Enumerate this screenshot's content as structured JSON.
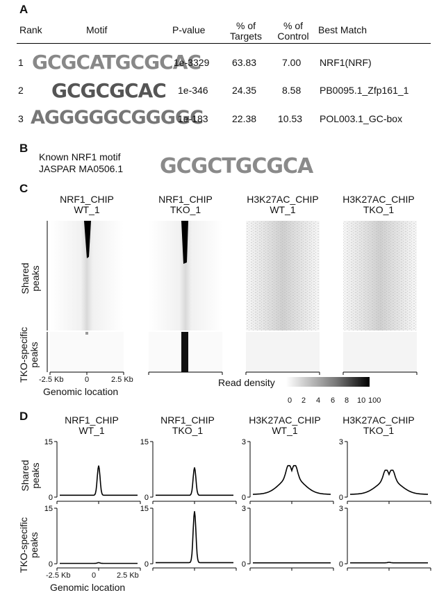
{
  "panel_a": {
    "letter": "A",
    "headers": {
      "rank": "Rank",
      "motif": "Motif",
      "pvalue": "P-value",
      "targets": [
        "% of",
        "Targets"
      ],
      "control": [
        "% of",
        "Control"
      ],
      "best": "Best Match"
    },
    "rows": [
      {
        "rank": "1",
        "motif": "GCGCATGCGCAC",
        "pvalue": "1e-3329",
        "targets": "63.83",
        "control": "7.00",
        "best": "NRF1(NRF)"
      },
      {
        "rank": "2",
        "motif": "GCGCGCAC",
        "pvalue": "1e-346",
        "targets": "24.35",
        "control": "8.58",
        "best": "PB0095.1_Zfp161_1"
      },
      {
        "rank": "3",
        "motif": "AGGGGGCGGGGC",
        "pvalue": "1e-183",
        "targets": "22.38",
        "control": "10.53",
        "best": "POL003.1_GC-box"
      }
    ]
  },
  "panel_b": {
    "letter": "B",
    "line1": "Known NRF1 motif",
    "line2": "JASPAR MA0506.1",
    "motif": "GCGCTGCGCA"
  },
  "panel_c": {
    "letter": "C",
    "columns": [
      {
        "line1": "NRF1_CHIP",
        "line2": "WT_1"
      },
      {
        "line1": "NRF1_CHIP",
        "line2": "TKO_1"
      },
      {
        "line1": "H3K27AC_CHIP",
        "line2": "WT_1"
      },
      {
        "line1": "H3K27AC_CHIP",
        "line2": "TKO_1"
      }
    ],
    "row_labels": {
      "shared": [
        "Shared",
        "peaks"
      ],
      "tko": [
        "TKO-specific",
        "peaks"
      ]
    },
    "x_ticks": [
      "-2.5 Kb",
      "0",
      "2.5 Kb"
    ],
    "x_label": "Genomic location",
    "legend_label": "Read density",
    "legend_ticks": [
      "0",
      "2",
      "4",
      "6",
      "8",
      "10",
      "100"
    ]
  },
  "panel_d": {
    "letter": "D",
    "columns": [
      {
        "line1": "NRF1_CHIP",
        "line2": "WT_1"
      },
      {
        "line1": "NRF1_CHIP",
        "line2": "TKO_1"
      },
      {
        "line1": "H3K27AC_CHIP",
        "line2": "WT_1"
      },
      {
        "line1": "H3K27AC_CHIP",
        "line2": "TKO_1"
      }
    ],
    "row_labels": {
      "shared": [
        "Shared",
        "peaks"
      ],
      "tko": [
        "TKO-specific",
        "peaks"
      ]
    },
    "x_ticks": [
      "-2.5 Kb",
      "0",
      "2.5 Kb"
    ],
    "x_label": "Genomic location"
  },
  "chart_data": [
    {
      "type": "line",
      "panel": "D",
      "row": "Shared peaks",
      "column": "NRF1_CHIP WT_1",
      "x_range": [
        "-2.5 Kb",
        "2.5 Kb"
      ],
      "ylim": [
        0,
        15
      ],
      "y_ticks": [
        0,
        15
      ],
      "baseline": 0.5,
      "peak_x": 0,
      "peak_y": 8.5
    },
    {
      "type": "line",
      "panel": "D",
      "row": "Shared peaks",
      "column": "NRF1_CHIP TKO_1",
      "x_range": [
        "-2.5 Kb",
        "2.5 Kb"
      ],
      "ylim": [
        0,
        15
      ],
      "y_ticks": [
        0,
        15
      ],
      "baseline": 0.5,
      "peak_x": 0,
      "peak_y": 8.0
    },
    {
      "type": "line",
      "panel": "D",
      "row": "Shared peaks",
      "column": "H3K27AC_CHIP WT_1",
      "x_range": [
        "-2.5 Kb",
        "2.5 Kb"
      ],
      "ylim": [
        0,
        3
      ],
      "y_ticks": [
        0,
        3
      ],
      "baseline": 0.15,
      "double_peak": true,
      "peak_y": 1.7
    },
    {
      "type": "line",
      "panel": "D",
      "row": "Shared peaks",
      "column": "H3K27AC_CHIP TKO_1",
      "x_range": [
        "-2.5 Kb",
        "2.5 Kb"
      ],
      "ylim": [
        0,
        3
      ],
      "y_ticks": [
        0,
        3
      ],
      "baseline": 0.15,
      "double_peak": true,
      "peak_y": 1.45
    },
    {
      "type": "line",
      "panel": "D",
      "row": "TKO-specific peaks",
      "column": "NRF1_CHIP WT_1",
      "x_range": [
        "-2.5 Kb",
        "2.5 Kb"
      ],
      "ylim": [
        0,
        15
      ],
      "y_ticks": [
        0,
        15
      ],
      "baseline": 0.1,
      "peak_x": 0,
      "peak_y": 0.3
    },
    {
      "type": "line",
      "panel": "D",
      "row": "TKO-specific peaks",
      "column": "NRF1_CHIP TKO_1",
      "x_range": [
        "-2.5 Kb",
        "2.5 Kb"
      ],
      "ylim": [
        0,
        15
      ],
      "y_ticks": [
        0,
        15
      ],
      "baseline": 0.3,
      "peak_x": 0,
      "peak_y": 14.2
    },
    {
      "type": "line",
      "panel": "D",
      "row": "TKO-specific peaks",
      "column": "H3K27AC_CHIP WT_1",
      "x_range": [
        "-2.5 Kb",
        "2.5 Kb"
      ],
      "ylim": [
        0,
        3
      ],
      "y_ticks": [
        0,
        3
      ],
      "baseline": 0.05,
      "peak_x": 0,
      "peak_y": 0.05
    },
    {
      "type": "line",
      "panel": "D",
      "row": "TKO-specific peaks",
      "column": "H3K27AC_CHIP TKO_1",
      "x_range": [
        "-2.5 Kb",
        "2.5 Kb"
      ],
      "ylim": [
        0,
        3
      ],
      "y_ticks": [
        0,
        3
      ],
      "baseline": 0.05,
      "peak_x": 0,
      "peak_y": 0.08
    }
  ]
}
